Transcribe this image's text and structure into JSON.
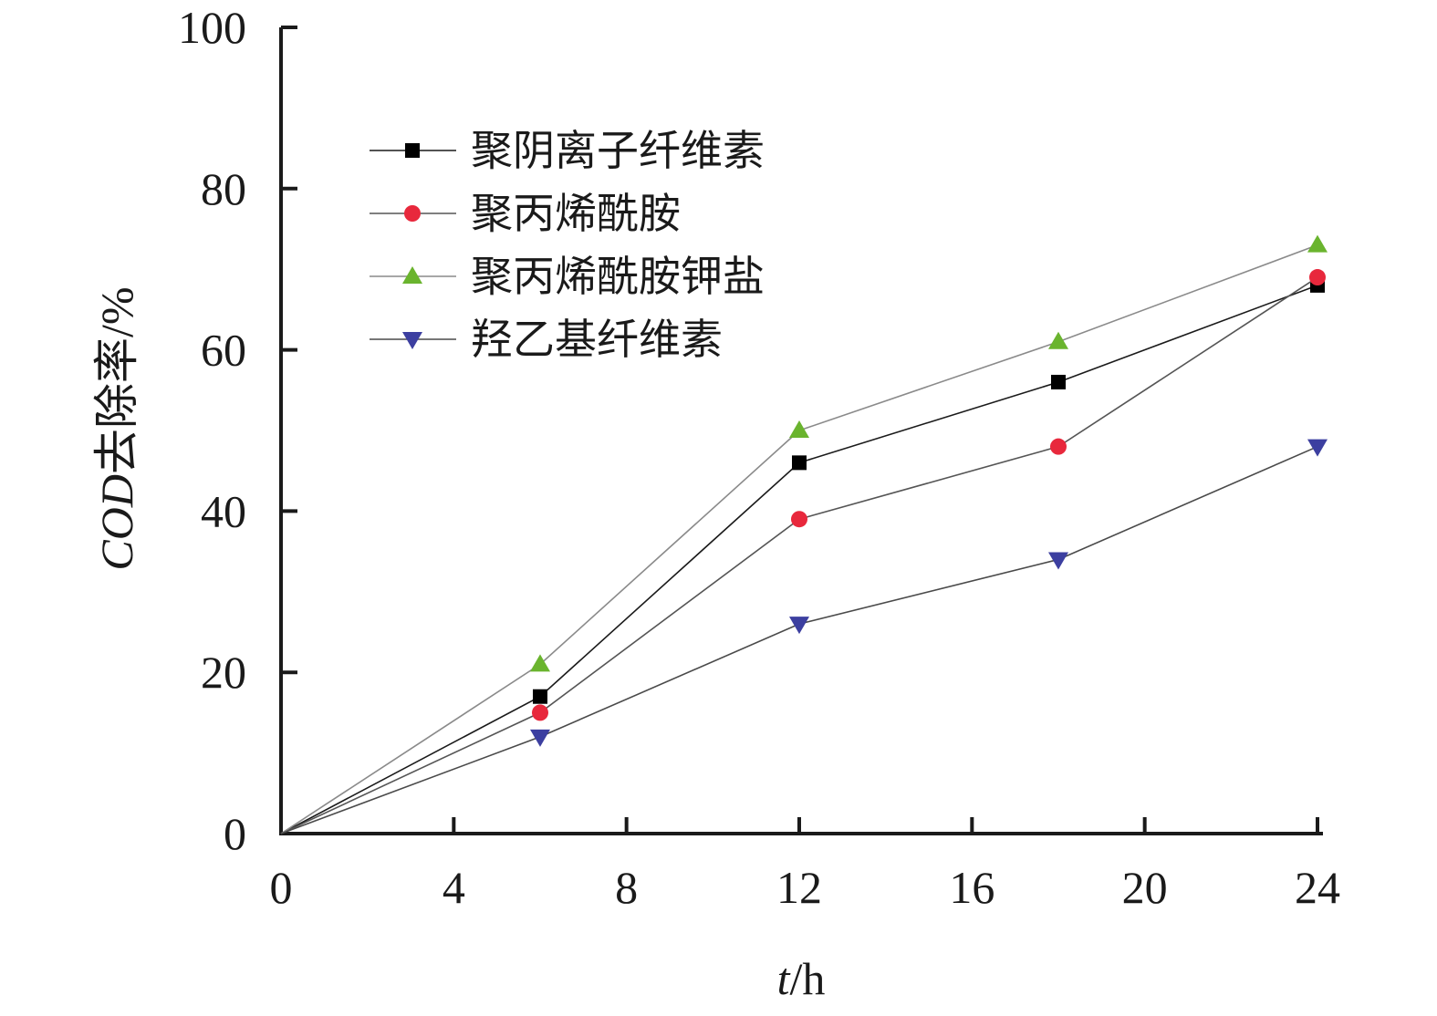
{
  "chart_data": {
    "type": "line",
    "x": [
      0,
      6,
      12,
      18,
      24
    ],
    "xticks": [
      "0",
      "4",
      "8",
      "12",
      "16",
      "20",
      "24"
    ],
    "yticks": [
      "0",
      "20",
      "40",
      "60",
      "80",
      "100"
    ],
    "xlim": [
      0,
      24
    ],
    "ylim": [
      0,
      100
    ],
    "xlabel_italic": "t",
    "xlabel_rest": "/h",
    "ylabel_italic": "COD",
    "ylabel_rest": "去除率/%",
    "grid": false,
    "legend_position": "top-left",
    "series": [
      {
        "name": "聚阴离子纤维素",
        "values": [
          0,
          17,
          46,
          56,
          68
        ],
        "marker": "square",
        "color": "#000000",
        "line_color": "#1a1a1a"
      },
      {
        "name": "聚丙烯酰胺",
        "values": [
          0,
          15,
          39,
          48,
          69
        ],
        "marker": "circle",
        "color": "#e8283c",
        "line_color": "#555555"
      },
      {
        "name": "聚丙烯酰胺钾盐",
        "values": [
          0,
          21,
          50,
          61,
          73
        ],
        "marker": "triangle-up",
        "color": "#6ab42e",
        "line_color": "#8a8a8a"
      },
      {
        "name": "羟乙基纤维素",
        "values": [
          0,
          12,
          26,
          34,
          48
        ],
        "marker": "triangle-down",
        "color": "#3c3fa0",
        "line_color": "#4a4a4a"
      }
    ]
  }
}
